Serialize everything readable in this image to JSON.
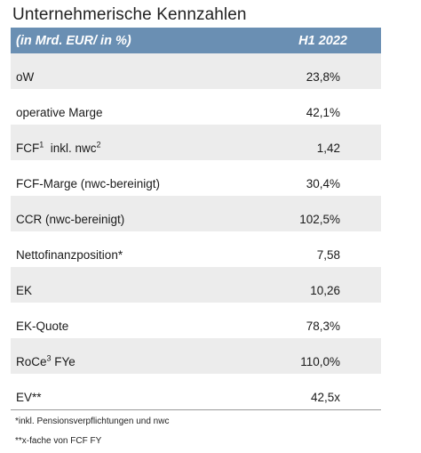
{
  "title": "Unternehmerische Kennzahlen",
  "table": {
    "header": {
      "label": "(in Mrd. EUR/ in %)",
      "value": "H1 2022"
    },
    "rows": [
      {
        "label": "oW",
        "sup": "",
        "label_after": "",
        "sup_after": "",
        "value": "23,8%"
      },
      {
        "label": "operative Marge",
        "sup": "",
        "label_after": "",
        "sup_after": "",
        "value": "42,1%"
      },
      {
        "label": "FCF",
        "sup": "1",
        "label_after": "  inkl. nwc",
        "sup_after": "2",
        "value": "1,42"
      },
      {
        "label": "FCF-Marge (nwc-bereinigt)",
        "sup": "",
        "label_after": "",
        "sup_after": "",
        "value": "30,4%"
      },
      {
        "label": "CCR (nwc-bereinigt)",
        "sup": "",
        "label_after": "",
        "sup_after": "",
        "value": "102,5%"
      },
      {
        "label": "Nettofinanzposition*",
        "sup": "",
        "label_after": "",
        "sup_after": "",
        "value": "7,58"
      },
      {
        "label": "EK",
        "sup": "",
        "label_after": "",
        "sup_after": "",
        "value": "10,26"
      },
      {
        "label": "EK-Quote",
        "sup": "",
        "label_after": "",
        "sup_after": "",
        "value": "78,3%"
      },
      {
        "label": "RoCe",
        "sup": "3",
        "label_after": " FYe",
        "sup_after": "",
        "value": "110,0%"
      },
      {
        "label": "EV**",
        "sup": "",
        "label_after": "",
        "sup_after": "",
        "value": "42,5x"
      }
    ]
  },
  "footnotes": {
    "first": "*inkl. Pensionsverpflichtungen und nwc",
    "second": "**x-fache von FCF FY"
  },
  "colors": {
    "header_bg": "#6a8fb3",
    "row_shade": "#ececec"
  }
}
